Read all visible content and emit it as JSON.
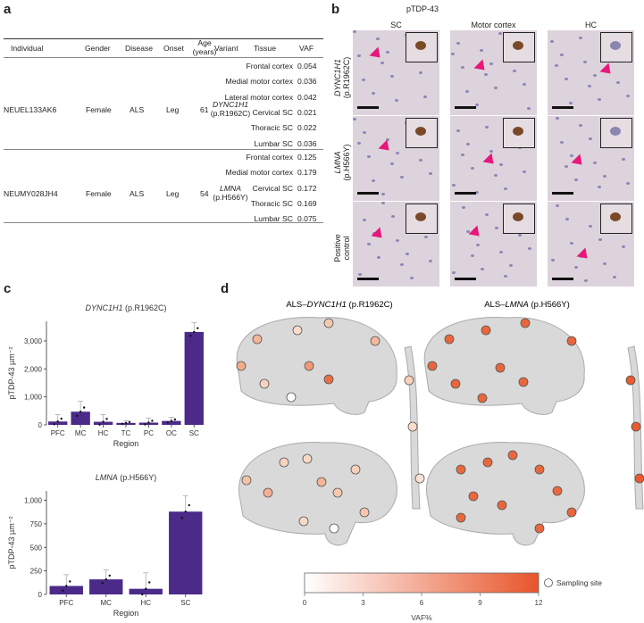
{
  "panels": {
    "a": "a",
    "b": "b",
    "c": "c",
    "d": "d"
  },
  "table": {
    "headers": {
      "individual": "Individual",
      "gender": "Gender",
      "disease": "Disease",
      "onset": "Onset",
      "age": "Age",
      "age_unit": "(years)",
      "variant": "Variant",
      "tissue": "Tissue",
      "vaf": "VAF"
    },
    "case1": {
      "individual": "NEUEL133AK6",
      "gender": "Female",
      "disease": "ALS",
      "onset": "Leg",
      "age": "61",
      "gene": "DYNC1H1",
      "change": "(p.R1962C)",
      "rows": [
        {
          "tissue": "Frontal cortex",
          "vaf": "0.054"
        },
        {
          "tissue": "Medial motor cortex",
          "vaf": "0.036"
        },
        {
          "tissue": "Lateral motor cortex",
          "vaf": "0.042"
        },
        {
          "tissue": "Cervical SC",
          "vaf": "0.021"
        },
        {
          "tissue": "Thoracic SC",
          "vaf": "0.022"
        },
        {
          "tissue": "Lumbar SC",
          "vaf": "0.036"
        }
      ]
    },
    "case2": {
      "individual": "NEUMY028JH4",
      "gender": "Female",
      "disease": "ALS",
      "onset": "Leg",
      "age": "54",
      "gene": "LMNA",
      "change": "(p.H566Y)",
      "rows": [
        {
          "tissue": "Frontal cortex",
          "vaf": "0.125"
        },
        {
          "tissue": "Medial motor cortex",
          "vaf": "0.179"
        },
        {
          "tissue": "Cervical SC",
          "vaf": "0.172"
        },
        {
          "tissue": "Thoracic SC",
          "vaf": "0.169"
        },
        {
          "tissue": "Lumbar SC",
          "vaf": "0.075"
        }
      ]
    }
  },
  "micro": {
    "title": "pTDP-43",
    "cols": [
      "SC",
      "Motor cortex",
      "HC"
    ],
    "rows": [
      {
        "gene": "DYNC1H1",
        "change": "(p.R1962C)"
      },
      {
        "gene": "LMNA",
        "change": "(p.H566Y)"
      },
      {
        "gene": "Positive",
        "change": "control"
      }
    ]
  },
  "chart_data": [
    {
      "type": "bar",
      "title_gene": "DYNC1H1",
      "title_change": "(p.R1962C)",
      "xlabel": "Region",
      "ylabel": "pTDP-43 µm⁻²",
      "categories": [
        "PFC",
        "MC",
        "HC",
        "TC",
        "PC",
        "OC",
        "SC"
      ],
      "values": [
        120,
        470,
        110,
        70,
        80,
        140,
        3320
      ],
      "errors": [
        250,
        370,
        260,
        80,
        160,
        130,
        340
      ],
      "ylim": [
        0,
        3700
      ],
      "yticks": [
        0,
        1000,
        2000,
        3000
      ],
      "ytick_labels": [
        "0",
        "1,000",
        "2,000",
        "3,000"
      ],
      "bar_color": "#4b2a8a"
    },
    {
      "type": "bar",
      "title_gene": "LMNA",
      "title_change": "(p.H566Y)",
      "xlabel": "Region",
      "ylabel": "pTDP-43 µm⁻²",
      "categories": [
        "PFC",
        "MC",
        "HC",
        "SC"
      ],
      "values": [
        90,
        160,
        60,
        880
      ],
      "errors": [
        120,
        100,
        170,
        170
      ],
      "ylim": [
        0,
        1100
      ],
      "yticks": [
        0,
        250,
        500,
        750,
        1000
      ],
      "ytick_labels": [
        "0",
        "250",
        "500",
        "750",
        "1,000"
      ],
      "bar_color": "#4b2a8a"
    }
  ],
  "brains": {
    "title1_prefix": "ALS–",
    "title1_gene": "DYNC1H1",
    "title1_change": " (p.R1962C)",
    "title2_prefix": "ALS–",
    "title2_gene": "LMNA",
    "title2_change": " (p.H566Y)",
    "colorbar": {
      "ticks": [
        "0",
        "3",
        "6",
        "9",
        "12"
      ],
      "label": "VAF%",
      "low_color": "#ffffff",
      "high_color": "#e8552b"
    },
    "legend_label": "Sampling site"
  }
}
